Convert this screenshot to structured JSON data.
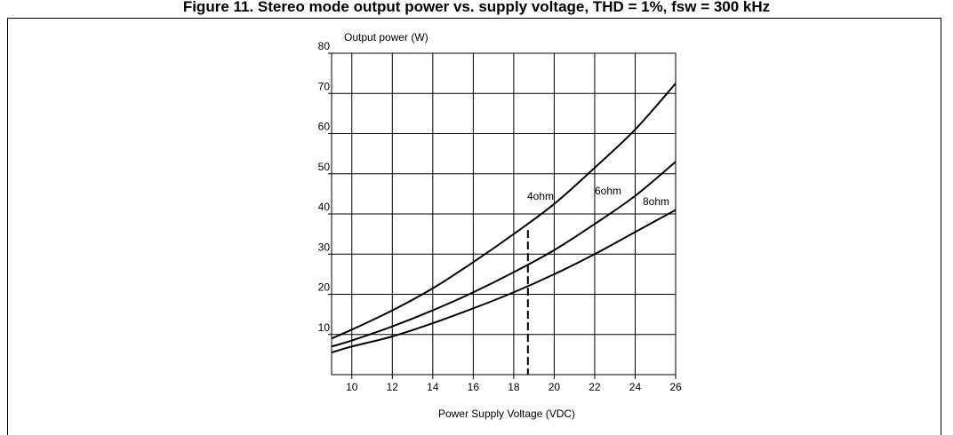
{
  "chart_data": {
    "type": "line",
    "title": "Figure 11. Stereo mode output power vs. supply voltage, THD = 1%, fsw = 300 kHz",
    "xlabel": "Power Supply Voltage (VDC)",
    "ylabel": "Output power (W)",
    "xlim": [
      9,
      26
    ],
    "ylim": [
      0,
      80
    ],
    "x_ticks": [
      10,
      12,
      14,
      16,
      18,
      20,
      22,
      24,
      26
    ],
    "y_ticks": [
      10,
      20,
      30,
      40,
      50,
      60,
      70,
      80
    ],
    "grid": true,
    "series": [
      {
        "name": "4ohm",
        "x": [
          9,
          10,
          12,
          14,
          16,
          18,
          20,
          22,
          24,
          26
        ],
        "values": [
          9,
          11.2,
          16,
          21.5,
          28,
          35,
          42.5,
          51.5,
          61,
          72.5
        ]
      },
      {
        "name": "6ohm",
        "x": [
          9,
          10,
          12,
          14,
          16,
          18,
          20,
          22,
          24,
          26
        ],
        "values": [
          7,
          8.5,
          12,
          16,
          20.5,
          25.5,
          31,
          37.5,
          44.5,
          53
        ]
      },
      {
        "name": "8ohm",
        "x": [
          9,
          10,
          12,
          14,
          16,
          18,
          20,
          22,
          24,
          26
        ],
        "values": [
          5.5,
          7,
          9.5,
          12.8,
          16.5,
          20.5,
          25,
          30,
          35.5,
          41
        ]
      }
    ],
    "annotations": [
      {
        "type": "vertical-dashed-line",
        "x": 18.7,
        "y_top": 36
      }
    ]
  }
}
